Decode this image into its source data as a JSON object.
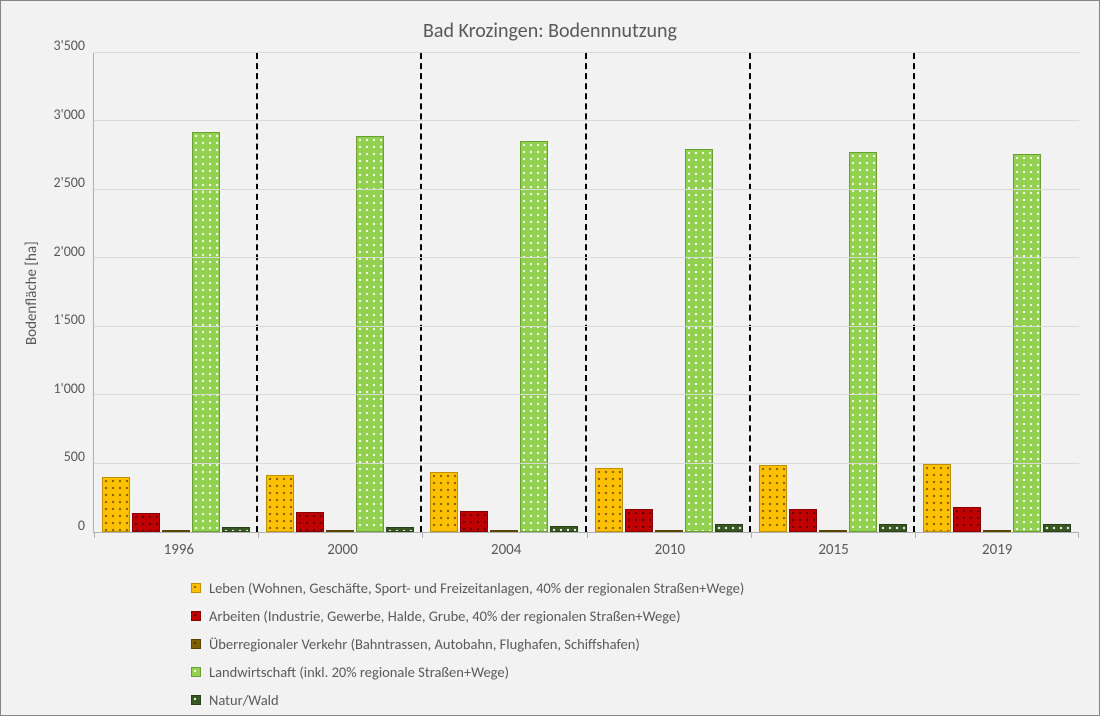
{
  "chart": {
    "type": "bar",
    "title": "Bad Krozingen: Bodennnutzung",
    "title_fontsize": 20,
    "ylabel": "Bodenfläche [ha]",
    "label_fontsize": 15,
    "background_color": "#f2f2f2",
    "border_color": "#868686",
    "grid_color": "#d9d9d9",
    "axis_color": "#b0b0b0",
    "text_color": "#595959",
    "divider_style": "dashed",
    "divider_color": "#000000",
    "ylim": [
      0,
      3500
    ],
    "ytick_step": 500,
    "yticks": [
      "0",
      "500",
      "1'000",
      "1'500",
      "2'000",
      "2'500",
      "3'000",
      "3'500"
    ],
    "categories": [
      "1996",
      "2000",
      "2004",
      "2010",
      "2015",
      "2019"
    ],
    "series": [
      {
        "key": "leben",
        "label": "Leben (Wohnen, Geschäfte, Sport- und Freizeitanlagen, 40% der regionalen Straßen+Wege)",
        "fill": "#ffc000",
        "border": "#bf9000",
        "pattern": "dots-dark",
        "values": [
          400,
          420,
          440,
          470,
          490,
          500
        ]
      },
      {
        "key": "arbeiten",
        "label": "Arbeiten (Industrie, Gewerbe, Halde, Grube, 40% der regionalen Straßen+Wege)",
        "fill": "#c00000",
        "border": "#8a0000",
        "pattern": "dots-dark",
        "values": [
          140,
          145,
          155,
          165,
          170,
          185
        ]
      },
      {
        "key": "verkehr",
        "label": "Überregionaler Verkehr (Bahntrassen, Autobahn, Flughafen, Schiffshafen)",
        "fill": "#7f6000",
        "border": "#5a4500",
        "pattern": "dots-dark",
        "values": [
          12,
          12,
          14,
          15,
          15,
          16
        ]
      },
      {
        "key": "landwirtschaft",
        "label": "Landwirtschaft (inkl. 20% regionale Straßen+Wege)",
        "fill": "#92d050",
        "border": "#6aa031",
        "pattern": "dots-light",
        "values": [
          2920,
          2890,
          2860,
          2800,
          2780,
          2760
        ]
      },
      {
        "key": "natur",
        "label": "Natur/Wald",
        "fill": "#385723",
        "border": "#274018",
        "pattern": "dots-light",
        "values": [
          35,
          38,
          42,
          55,
          58,
          60
        ]
      }
    ]
  }
}
